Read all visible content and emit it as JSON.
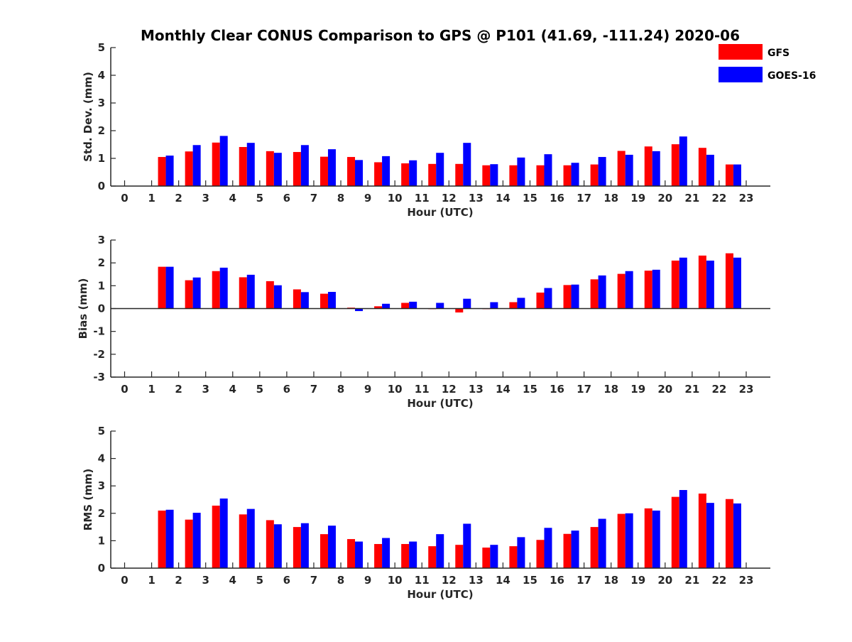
{
  "chart_data": {
    "type": "bar",
    "title": "Monthly Clear CONUS Comparison to GPS @ P101 (41.69, -111.24) 2020-06",
    "legend": {
      "placement": "top-right",
      "entries": [
        "GFS",
        "GOES-16"
      ]
    },
    "series_colors": {
      "GFS": "#ff0000",
      "GOES-16": "#0000ff"
    },
    "grid": false,
    "categories": [
      "0",
      "1",
      "2",
      "3",
      "4",
      "5",
      "6",
      "7",
      "8",
      "9",
      "10",
      "11",
      "12",
      "13",
      "14",
      "15",
      "16",
      "17",
      "18",
      "19",
      "20",
      "21",
      "22",
      "23"
    ],
    "subplots": [
      {
        "ylabel": "Std. Dev. (mm)",
        "xlabel": "Hour (UTC)",
        "ylim": [
          0,
          5
        ],
        "yticks": [
          "0",
          "1",
          "2",
          "3",
          "4",
          "5"
        ],
        "series": [
          {
            "name": "GFS",
            "values": [
              null,
              1.05,
              1.25,
              1.57,
              1.41,
              1.26,
              1.23,
              1.06,
              1.05,
              0.86,
              0.82,
              0.8,
              0.8,
              0.75,
              0.75,
              0.75,
              0.75,
              0.78,
              1.27,
              1.43,
              1.51,
              1.38,
              0.78,
              null
            ]
          },
          {
            "name": "GOES-16",
            "values": [
              null,
              1.1,
              1.48,
              1.81,
              1.56,
              1.2,
              1.48,
              1.33,
              0.94,
              1.08,
              0.93,
              1.2,
              1.56,
              0.79,
              1.03,
              1.15,
              0.84,
              1.05,
              1.13,
              1.26,
              1.79,
              1.13,
              0.78,
              null
            ]
          }
        ]
      },
      {
        "ylabel": "Bias (mm)",
        "xlabel": "Hour (UTC)",
        "ylim": [
          -3,
          3
        ],
        "yticks": [
          "-3",
          "-2",
          "-1",
          "0",
          "1",
          "2",
          "3"
        ],
        "series": [
          {
            "name": "GFS",
            "values": [
              null,
              1.83,
              1.24,
              1.64,
              1.37,
              1.2,
              0.84,
              0.65,
              0.04,
              0.1,
              0.25,
              0.0,
              -0.17,
              0.0,
              0.28,
              0.7,
              1.03,
              1.28,
              1.52,
              1.66,
              2.1,
              2.32,
              2.42,
              null
            ]
          },
          {
            "name": "GOES-16",
            "values": [
              null,
              1.83,
              1.36,
              1.79,
              1.48,
              1.02,
              0.72,
              0.73,
              -0.11,
              0.21,
              0.3,
              0.25,
              0.43,
              0.28,
              0.47,
              0.9,
              1.05,
              1.45,
              1.64,
              1.7,
              2.23,
              2.1,
              2.23,
              null
            ]
          }
        ]
      },
      {
        "ylabel": "RMS (mm)",
        "xlabel": "Hour (UTC)",
        "ylim": [
          0,
          5
        ],
        "yticks": [
          "0",
          "1",
          "2",
          "3",
          "4",
          "5"
        ],
        "series": [
          {
            "name": "GFS",
            "values": [
              null,
              2.1,
              1.77,
              2.28,
              1.96,
              1.75,
              1.5,
              1.24,
              1.06,
              0.88,
              0.88,
              0.8,
              0.85,
              0.75,
              0.8,
              1.03,
              1.25,
              1.5,
              1.98,
              2.18,
              2.6,
              2.72,
              2.52,
              null
            ]
          },
          {
            "name": "GOES-16",
            "values": [
              null,
              2.13,
              2.02,
              2.54,
              2.16,
              1.6,
              1.64,
              1.55,
              0.97,
              1.1,
              0.97,
              1.24,
              1.62,
              0.85,
              1.13,
              1.47,
              1.37,
              1.8,
              2.0,
              2.1,
              2.85,
              2.38,
              2.36,
              null
            ]
          }
        ]
      }
    ]
  }
}
